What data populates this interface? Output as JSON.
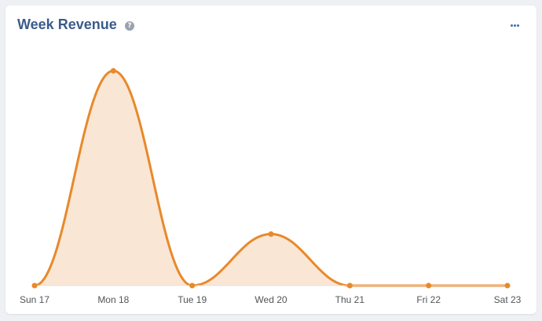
{
  "widget": {
    "title": "Week Revenue",
    "help_icon": "question-circle-icon",
    "menu_icon": "ellipsis-icon",
    "accent_color": "#e8892b",
    "fill_color": "#fae6d4"
  },
  "chart_data": {
    "type": "area",
    "title": "Week Revenue",
    "categories": [
      "Sun 17",
      "Mon 18",
      "Tue 19",
      "Wed 20",
      "Thu 21",
      "Fri 22",
      "Sat 23"
    ],
    "values": [
      0,
      100,
      0,
      24,
      0,
      0,
      0
    ],
    "ylim": [
      0,
      100
    ],
    "grid": false,
    "legend": "none",
    "smooth": true
  }
}
